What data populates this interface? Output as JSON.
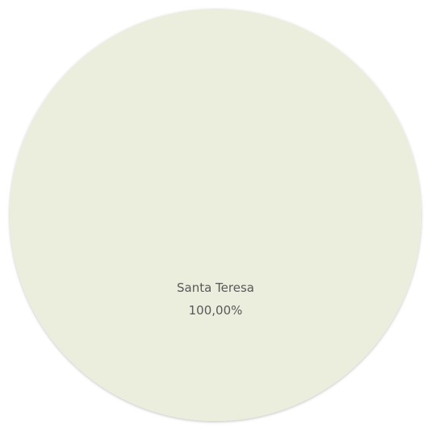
{
  "chart_data": {
    "type": "pie",
    "categories": [
      "Santa Teresa"
    ],
    "values": [
      100
    ],
    "value_labels": [
      "100,00%"
    ],
    "colors": [
      "#ebeedd"
    ]
  }
}
